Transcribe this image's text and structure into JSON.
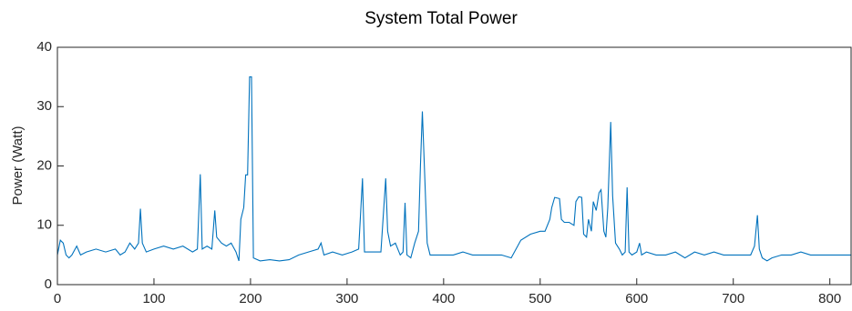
{
  "chart_data": {
    "type": "line",
    "title": "System Total Power",
    "ylabel": "Power (Watt)",
    "x": [
      0,
      3,
      6,
      9,
      12,
      15,
      20,
      24,
      30,
      40,
      50,
      60,
      65,
      70,
      75,
      80,
      84,
      86,
      88,
      92,
      100,
      110,
      120,
      130,
      140,
      145,
      148,
      150,
      155,
      160,
      163,
      165,
      170,
      175,
      180,
      185,
      188,
      190,
      193,
      195,
      197,
      199,
      201,
      203,
      210,
      220,
      230,
      240,
      250,
      260,
      270,
      273,
      276,
      285,
      295,
      305,
      312,
      316,
      318,
      325,
      335,
      340,
      342,
      345,
      350,
      355,
      358,
      360,
      362,
      366,
      370,
      374,
      376,
      378,
      380,
      383,
      386,
      395,
      410,
      420,
      430,
      440,
      450,
      460,
      470,
      475,
      480,
      490,
      500,
      505,
      510,
      512,
      515,
      520,
      522,
      525,
      530,
      535,
      537,
      540,
      543,
      545,
      548,
      550,
      553,
      555,
      558,
      561,
      563,
      566,
      568,
      570,
      573,
      575,
      578,
      582,
      585,
      588,
      590,
      592,
      595,
      600,
      603,
      605,
      610,
      620,
      630,
      640,
      650,
      660,
      670,
      680,
      690,
      700,
      710,
      718,
      722,
      725,
      727,
      730,
      735,
      740,
      750,
      760,
      770,
      780,
      790,
      800,
      810,
      822
    ],
    "values": [
      5,
      7.5,
      7,
      5,
      4.5,
      5,
      6.5,
      5,
      5.5,
      6,
      5.5,
      6,
      5,
      5.5,
      7,
      6,
      7,
      12.8,
      7,
      5.5,
      6,
      6.5,
      6,
      6.5,
      5.5,
      6,
      18.6,
      6,
      6.5,
      6,
      12.5,
      8,
      7,
      6.5,
      7,
      5.5,
      4,
      11,
      13,
      18.5,
      18.5,
      35,
      35,
      4.5,
      4,
      4.2,
      4,
      4.2,
      5,
      5.5,
      6,
      7,
      5,
      5.5,
      5,
      5.5,
      6,
      17.9,
      5.5,
      5.5,
      5.5,
      17.9,
      9,
      6.5,
      7,
      5,
      5.5,
      13.8,
      5,
      4.5,
      7,
      9,
      20,
      29.2,
      20,
      7,
      5,
      5,
      5,
      5.5,
      5,
      5,
      5,
      5,
      4.5,
      6,
      7.5,
      8.5,
      9,
      9,
      11,
      13,
      14.7,
      14.5,
      11,
      10.5,
      10.5,
      10,
      14,
      14.8,
      14.7,
      8.5,
      8,
      11,
      9,
      14,
      12.5,
      15.5,
      16,
      9,
      8,
      13,
      27.4,
      15,
      7,
      6,
      5,
      5.5,
      16.4,
      5.5,
      5,
      5.5,
      7,
      5,
      5.5,
      5,
      5,
      5.5,
      4.5,
      5.5,
      5,
      5.5,
      5,
      5,
      5,
      5,
      6.5,
      11.7,
      6,
      4.5,
      4,
      4.5,
      5,
      5,
      5.5,
      5,
      5,
      5,
      5,
      5
    ],
    "color": "#0072bd",
    "xlim": [
      0,
      822
    ],
    "ylim": [
      0,
      40
    ],
    "xticks": [
      0,
      100,
      200,
      300,
      400,
      500,
      600,
      700,
      800
    ],
    "yticks": [
      0,
      10,
      20,
      30,
      40
    ]
  }
}
